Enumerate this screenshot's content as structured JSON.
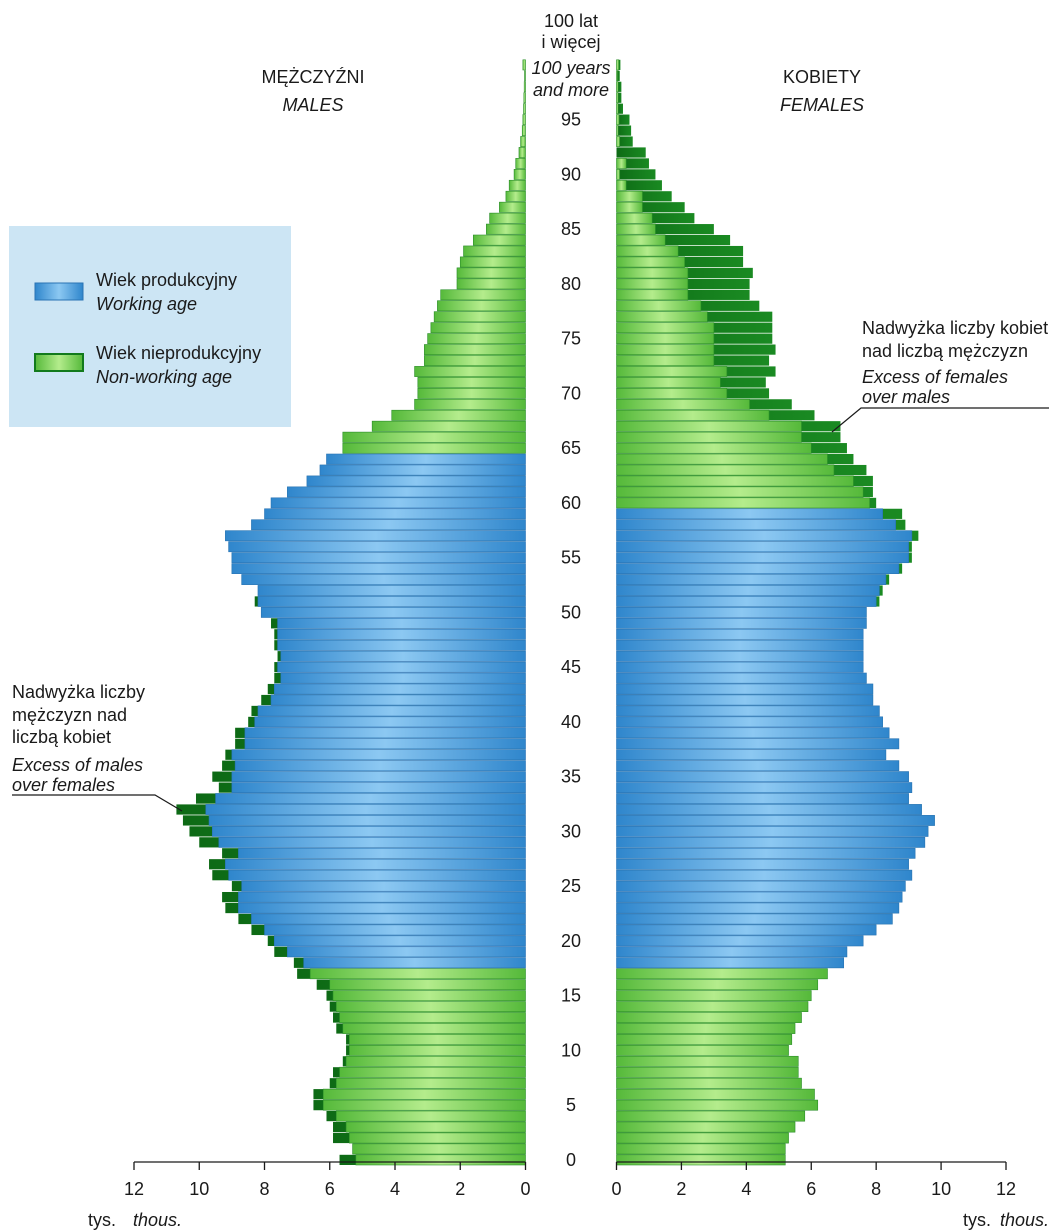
{
  "chart_data": {
    "type": "bar",
    "orientation": "horizontal-population-pyramid",
    "ages": [
      0,
      1,
      2,
      3,
      4,
      5,
      6,
      7,
      8,
      9,
      10,
      11,
      12,
      13,
      14,
      15,
      16,
      17,
      18,
      19,
      20,
      21,
      22,
      23,
      24,
      25,
      26,
      27,
      28,
      29,
      30,
      31,
      32,
      33,
      34,
      35,
      36,
      37,
      38,
      39,
      40,
      41,
      42,
      43,
      44,
      45,
      46,
      47,
      48,
      49,
      50,
      51,
      52,
      53,
      54,
      55,
      56,
      57,
      58,
      59,
      60,
      61,
      62,
      63,
      64,
      65,
      66,
      67,
      68,
      69,
      70,
      71,
      72,
      73,
      74,
      75,
      76,
      77,
      78,
      79,
      80,
      81,
      82,
      83,
      84,
      85,
      86,
      87,
      88,
      89,
      90,
      91,
      92,
      93,
      94,
      95,
      96,
      97,
      98,
      99,
      100
    ],
    "age_ticks": [
      "0",
      "5",
      "10",
      "15",
      "20",
      "25",
      "30",
      "35",
      "40",
      "45",
      "50",
      "55",
      "60",
      "65",
      "70",
      "75",
      "80",
      "85",
      "90",
      "95"
    ],
    "top_label": [
      "100 lat",
      "i więcej"
    ],
    "top_label_en": [
      "100 years",
      "and more"
    ],
    "males_label": "MĘŻCZYŹNI",
    "males_label_en": "MALES",
    "females_label": "KOBIETY",
    "females_label_en": "FEMALES",
    "males_total": [
      5.7,
      5.3,
      5.9,
      5.9,
      6.1,
      6.5,
      6.5,
      6.0,
      5.9,
      5.6,
      5.5,
      5.5,
      5.8,
      5.9,
      6.0,
      6.1,
      6.4,
      7.0,
      7.1,
      7.7,
      7.9,
      8.4,
      8.8,
      9.2,
      9.3,
      9.0,
      9.6,
      9.7,
      9.3,
      10.0,
      10.3,
      10.5,
      10.7,
      10.1,
      9.4,
      9.6,
      9.3,
      9.2,
      8.9,
      8.9,
      8.5,
      8.4,
      8.1,
      7.9,
      7.7,
      7.7,
      7.6,
      7.7,
      7.7,
      7.8,
      8.1,
      8.3,
      8.2,
      8.7,
      9.0,
      9.0,
      9.1,
      9.2,
      8.4,
      8.0,
      7.8,
      7.3,
      6.7,
      6.3,
      6.1,
      5.6,
      5.6,
      4.7,
      4.1,
      3.4,
      3.3,
      3.3,
      3.4,
      3.1,
      3.1,
      3.0,
      2.9,
      2.8,
      2.7,
      2.6,
      2.1,
      2.1,
      2.0,
      1.9,
      1.6,
      1.2,
      1.1,
      0.8,
      0.6,
      0.5,
      0.35,
      0.3,
      0.2,
      0.15,
      0.1,
      0.08,
      0.06,
      0.05,
      0.04,
      0.03,
      0.08
    ],
    "males_excess": [
      0.5,
      0.0,
      0.5,
      0.4,
      0.3,
      0.3,
      0.3,
      0.2,
      0.2,
      0.1,
      0.1,
      0.1,
      0.2,
      0.2,
      0.2,
      0.2,
      0.4,
      0.4,
      0.3,
      0.4,
      0.2,
      0.4,
      0.4,
      0.4,
      0.5,
      0.3,
      0.5,
      0.5,
      0.5,
      0.6,
      0.7,
      0.8,
      0.9,
      0.6,
      0.4,
      0.6,
      0.4,
      0.2,
      0.3,
      0.3,
      0.2,
      0.2,
      0.3,
      0.2,
      0.2,
      0.1,
      0.1,
      0.1,
      0.1,
      0.2,
      0.0,
      0.1,
      0.0,
      0.0,
      0.0,
      0.0,
      0.0,
      0.0,
      0.0,
      0.0,
      0.0,
      0.0,
      0.0,
      0.0,
      0.0,
      0.0,
      0.0,
      0.0,
      0.0,
      0.0,
      0.0,
      0.0,
      0.0,
      0.0,
      0.0,
      0.0,
      0.0,
      0.0,
      0.0,
      0.0,
      0.0,
      0.0,
      0.0,
      0.0,
      0.0,
      0.0,
      0.0,
      0.0,
      0.0,
      0.0,
      0.0,
      0.0,
      0.0,
      0.0,
      0.0,
      0.0,
      0.0,
      0.0,
      0.0,
      0.0,
      0.0
    ],
    "females_total": [
      5.2,
      5.2,
      5.3,
      5.5,
      5.8,
      6.2,
      6.1,
      5.7,
      5.6,
      5.6,
      5.3,
      5.4,
      5.5,
      5.7,
      5.9,
      6.0,
      6.2,
      6.5,
      7.0,
      7.1,
      7.6,
      8.0,
      8.5,
      8.7,
      8.8,
      8.9,
      9.1,
      9.0,
      9.2,
      9.5,
      9.6,
      9.8,
      9.4,
      9.0,
      9.1,
      9.0,
      8.7,
      8.3,
      8.7,
      8.4,
      8.2,
      8.1,
      7.9,
      7.9,
      7.7,
      7.6,
      7.6,
      7.6,
      7.6,
      7.7,
      7.7,
      8.1,
      8.2,
      8.4,
      8.8,
      9.1,
      9.1,
      9.3,
      8.9,
      8.8,
      8.0,
      7.9,
      7.9,
      7.7,
      7.3,
      7.1,
      6.9,
      6.9,
      6.1,
      5.4,
      4.7,
      4.6,
      4.9,
      4.7,
      4.9,
      4.8,
      4.8,
      4.8,
      4.4,
      4.1,
      4.1,
      4.2,
      3.9,
      3.9,
      3.5,
      3.0,
      2.4,
      2.1,
      1.7,
      1.4,
      1.2,
      1.0,
      0.9,
      0.5,
      0.45,
      0.4,
      0.2,
      0.15,
      0.15,
      0.1,
      0.12
    ],
    "females_excess": [
      0.0,
      0.0,
      0.0,
      0.0,
      0.0,
      0.0,
      0.0,
      0.0,
      0.0,
      0.0,
      0.0,
      0.0,
      0.0,
      0.0,
      0.0,
      0.0,
      0.0,
      0.0,
      0.0,
      0.0,
      0.0,
      0.0,
      0.0,
      0.0,
      0.0,
      0.0,
      0.0,
      0.0,
      0.0,
      0.0,
      0.0,
      0.0,
      0.0,
      0.0,
      0.0,
      0.0,
      0.0,
      0.0,
      0.0,
      0.0,
      0.0,
      0.0,
      0.0,
      0.0,
      0.0,
      0.0,
      0.0,
      0.0,
      0.0,
      0.0,
      0.0,
      0.1,
      0.1,
      0.1,
      0.1,
      0.1,
      0.1,
      0.2,
      0.3,
      0.6,
      0.2,
      0.3,
      0.6,
      1.0,
      0.8,
      1.1,
      1.2,
      1.2,
      1.4,
      1.3,
      1.3,
      1.4,
      1.5,
      1.7,
      1.9,
      1.8,
      1.8,
      2.0,
      1.8,
      1.9,
      1.9,
      2.0,
      1.8,
      2.0,
      2.0,
      1.8,
      1.3,
      1.3,
      0.9,
      1.1,
      1.1,
      0.7,
      0.9,
      0.4,
      0.4,
      0.32,
      0.15,
      0.1,
      0.1,
      0.07,
      0.05
    ],
    "working_age_males": [
      18,
      64
    ],
    "working_age_females": [
      18,
      59
    ],
    "xlim": [
      0,
      12
    ],
    "x_ticks": [
      "0",
      "2",
      "4",
      "6",
      "8",
      "10",
      "12"
    ],
    "x_unit": "tys.",
    "x_unit_en": "thous.",
    "legend": {
      "position": "left",
      "items": [
        {
          "label": "Wiek produkcyjny",
          "label_en": "Working age",
          "color": "#3d8fd1"
        },
        {
          "label": "Wiek nieprodukcyjny",
          "label_en": "Non-working age",
          "color": "#6dcc4f"
        }
      ]
    },
    "annotation_female": [
      "Nadwyżka liczby kobiet",
      "nad liczbą mężczyzn"
    ],
    "annotation_female_en": [
      "Excess of females",
      "over males"
    ],
    "annotation_male": [
      "Nadwyżka liczby",
      "mężczyzn nad",
      "liczbą kobiet"
    ],
    "annotation_male_en": [
      "Excess of males",
      "over females"
    ],
    "colors": {
      "working": "#3d8fd1",
      "working_light": "#7dbdee",
      "nonworking": "#6dcc4f",
      "nonworking_light": "#a6e57f",
      "excess": "#117a1a",
      "legend_bg": "#cce5f4",
      "axis": "#1a1a1a"
    }
  }
}
